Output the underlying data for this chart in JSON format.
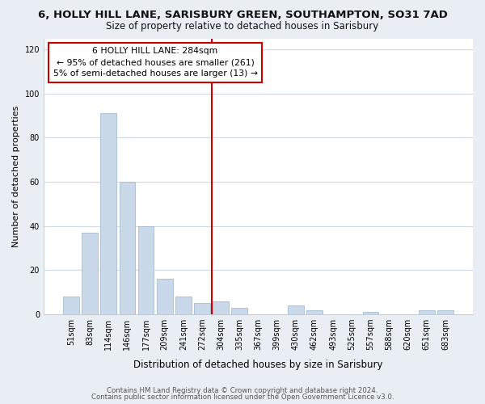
{
  "title": "6, HOLLY HILL LANE, SARISBURY GREEN, SOUTHAMPTON, SO31 7AD",
  "subtitle": "Size of property relative to detached houses in Sarisbury",
  "xlabel": "Distribution of detached houses by size in Sarisbury",
  "ylabel": "Number of detached properties",
  "bar_color": "#c9d9ea",
  "bar_edge_color": "#a8bdd0",
  "categories": [
    "51sqm",
    "83sqm",
    "114sqm",
    "146sqm",
    "177sqm",
    "209sqm",
    "241sqm",
    "272sqm",
    "304sqm",
    "335sqm",
    "367sqm",
    "399sqm",
    "430sqm",
    "462sqm",
    "493sqm",
    "525sqm",
    "557sqm",
    "588sqm",
    "620sqm",
    "651sqm",
    "683sqm"
  ],
  "values": [
    8,
    37,
    91,
    60,
    40,
    16,
    8,
    5,
    6,
    3,
    0,
    0,
    4,
    2,
    0,
    0,
    1,
    0,
    0,
    2,
    2
  ],
  "ylim": [
    0,
    125
  ],
  "yticks": [
    0,
    20,
    40,
    60,
    80,
    100,
    120
  ],
  "vline_color": "#cc0000",
  "annotation_title": "6 HOLLY HILL LANE: 284sqm",
  "annotation_line1": "← 95% of detached houses are smaller (261)",
  "annotation_line2": "5% of semi-detached houses are larger (13) →",
  "annotation_box_facecolor": "#ffffff",
  "annotation_box_edgecolor": "#cc0000",
  "footer1": "Contains HM Land Registry data © Crown copyright and database right 2024.",
  "footer2": "Contains public sector information licensed under the Open Government Licence v3.0.",
  "fig_facecolor": "#e8eef4",
  "plot_facecolor": "#ffffff",
  "grid_color": "#d0dae4",
  "title_fontsize": 9.5,
  "subtitle_fontsize": 8.5,
  "ylabel_fontsize": 8,
  "xlabel_fontsize": 8.5,
  "tick_fontsize": 7,
  "annot_fontsize": 7.8,
  "footer_fontsize": 6.2
}
